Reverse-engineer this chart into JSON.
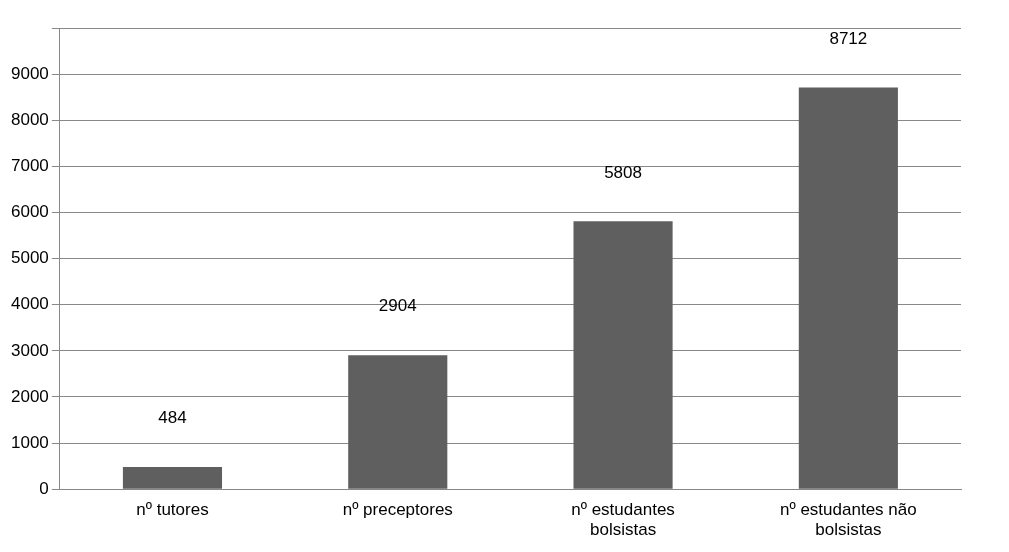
{
  "chart_data": {
    "type": "bar",
    "categories": [
      "nº tutores",
      "nº preceptores",
      "nº estudantes bolsistas",
      "nº estudantes não bolsistas"
    ],
    "values": [
      484,
      2904,
      5808,
      8712
    ],
    "color": "#5f5f5f",
    "ylim": [
      0,
      10000
    ],
    "yticks": [
      0,
      1000,
      2000,
      3000,
      4000,
      5000,
      6000,
      7000,
      8000,
      9000,
      {
        "value": 10000,
        "label": null
      }
    ],
    "grid": "y",
    "data_labels": true
  }
}
